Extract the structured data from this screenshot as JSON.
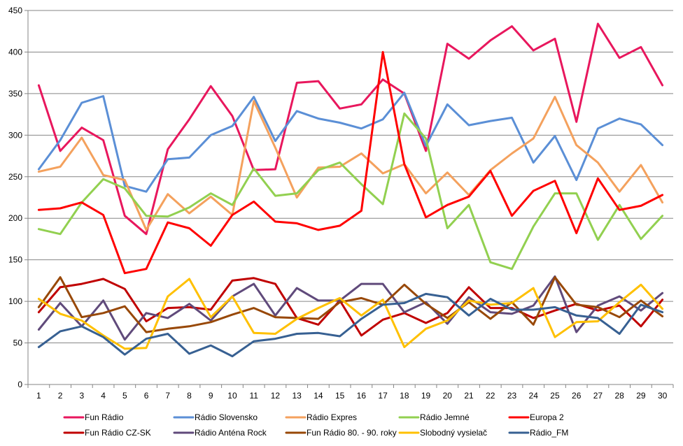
{
  "chart_data": {
    "type": "line",
    "categories": [
      "1",
      "2",
      "3",
      "4",
      "5",
      "6",
      "7",
      "8",
      "9",
      "10",
      "11",
      "12",
      "13",
      "14",
      "15",
      "16",
      "17",
      "18",
      "19",
      "20",
      "21",
      "22",
      "23",
      "24",
      "25",
      "26",
      "27",
      "28",
      "29",
      "30"
    ],
    "ylim": [
      0,
      450
    ],
    "y_ticks": [
      0,
      50,
      100,
      150,
      200,
      250,
      300,
      350,
      400,
      450
    ],
    "grid": "horizontal",
    "legend_position": "bottom",
    "series": [
      {
        "name": "Fun Rádio",
        "color": "#e8175d",
        "values": [
          360,
          281,
          309,
          294,
          203,
          181,
          283,
          319,
          359,
          323,
          258,
          259,
          363,
          365,
          332,
          337,
          367,
          350,
          281,
          410,
          392,
          414,
          431,
          402,
          416,
          316,
          434,
          393,
          406,
          360
        ]
      },
      {
        "name": "Rádio Slovensko",
        "color": "#5b8fd6",
        "values": [
          259,
          294,
          339,
          347,
          239,
          232,
          271,
          273,
          300,
          311,
          346,
          293,
          329,
          320,
          315,
          308,
          319,
          351,
          287,
          337,
          312,
          317,
          321,
          267,
          299,
          246,
          308,
          320,
          313,
          288
        ]
      },
      {
        "name": "Rádio Expres",
        "color": "#f4a15d",
        "values": [
          256,
          262,
          297,
          252,
          246,
          186,
          229,
          206,
          226,
          204,
          341,
          285,
          225,
          261,
          262,
          278,
          254,
          265,
          230,
          255,
          228,
          258,
          278,
          296,
          346,
          288,
          267,
          232,
          264,
          219
        ]
      },
      {
        "name": "Rádio Jemné",
        "color": "#92d050",
        "values": [
          187,
          181,
          219,
          247,
          236,
          203,
          202,
          213,
          230,
          216,
          260,
          227,
          230,
          258,
          267,
          241,
          217,
          326,
          296,
          188,
          216,
          147,
          139,
          190,
          230,
          230,
          174,
          216,
          175,
          203
        ]
      },
      {
        "name": "Europa 2",
        "color": "#ff0000",
        "values": [
          210,
          212,
          219,
          204,
          134,
          139,
          195,
          188,
          167,
          204,
          220,
          196,
          194,
          186,
          191,
          209,
          400,
          265,
          201,
          216,
          226,
          257,
          203,
          233,
          245,
          182,
          248,
          210,
          215,
          228
        ]
      },
      {
        "name": "Fun Rádio CZ-SK",
        "color": "#c00000",
        "values": [
          87,
          117,
          121,
          127,
          115,
          76,
          92,
          93,
          90,
          125,
          128,
          121,
          80,
          72,
          101,
          59,
          78,
          86,
          74,
          86,
          117,
          92,
          92,
          80,
          89,
          97,
          89,
          95,
          70,
          102
        ]
      },
      {
        "name": "Rádio Anténa Rock",
        "color": "#604a7b",
        "values": [
          66,
          98,
          70,
          101,
          54,
          86,
          80,
          97,
          77,
          106,
          121,
          83,
          116,
          101,
          101,
          121,
          121,
          87,
          99,
          73,
          105,
          87,
          85,
          95,
          130,
          63,
          95,
          106,
          89,
          110
        ]
      },
      {
        "name": "Fun Rádio 80. - 90. roky",
        "color": "#984807",
        "values": [
          93,
          129,
          81,
          86,
          94,
          63,
          67,
          70,
          75,
          84,
          92,
          81,
          80,
          79,
          99,
          104,
          96,
          120,
          97,
          80,
          99,
          79,
          99,
          72,
          129,
          96,
          93,
          81,
          101,
          82
        ]
      },
      {
        "name": "Slobodný vysielač",
        "color": "#ffc000",
        "values": [
          103,
          85,
          77,
          59,
          43,
          44,
          106,
          127,
          81,
          106,
          62,
          61,
          79,
          92,
          104,
          83,
          102,
          45,
          67,
          77,
          101,
          96,
          98,
          116,
          57,
          75,
          76,
          99,
          120,
          91
        ]
      },
      {
        "name": "Rádio_FM",
        "color": "#376092",
        "values": [
          45,
          64,
          70,
          57,
          36,
          55,
          61,
          37,
          47,
          34,
          52,
          55,
          61,
          62,
          58,
          79,
          96,
          98,
          109,
          105,
          83,
          103,
          90,
          90,
          93,
          83,
          80,
          61,
          96,
          87
        ]
      }
    ]
  }
}
